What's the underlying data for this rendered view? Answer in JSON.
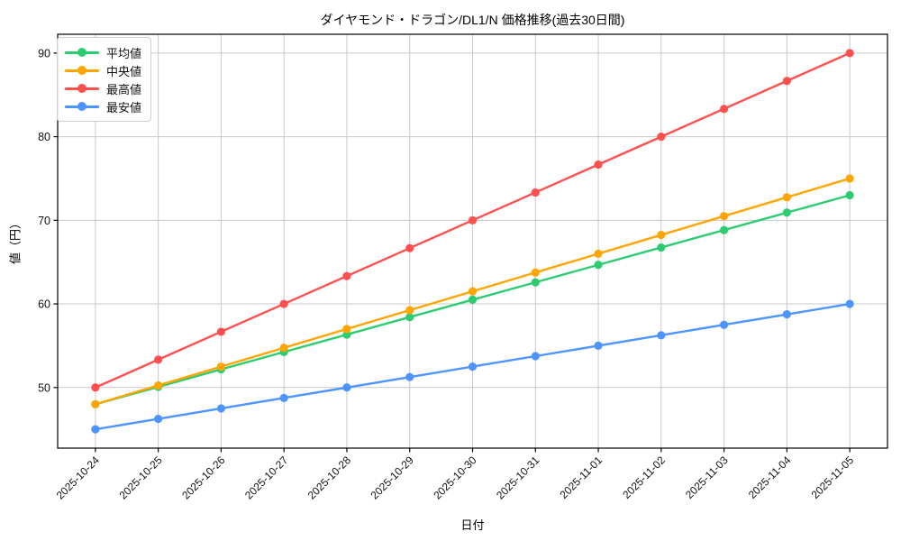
{
  "chart_data": {
    "type": "line",
    "title": "ダイヤモンド・ドラゴン/DL1/N 価格推移(過去30日間)",
    "xlabel": "日付",
    "ylabel": "値（円）",
    "x_categories": [
      "2025-10-24",
      "2025-10-25",
      "2025-10-26",
      "2025-10-27",
      "2025-10-28",
      "2025-10-29",
      "2025-10-30",
      "2025-10-31",
      "2025-11-01",
      "2025-11-02",
      "2025-11-03",
      "2025-11-04",
      "2025-11-05"
    ],
    "series": [
      {
        "key": "average",
        "name": "平均値",
        "color": "#2ecc71",
        "values": [
          48,
          50.08,
          52.17,
          54.25,
          56.33,
          58.42,
          60.5,
          62.58,
          64.67,
          66.75,
          68.83,
          70.92,
          73
        ]
      },
      {
        "key": "median",
        "name": "中央値",
        "color": "#ffa502",
        "values": [
          48,
          50.25,
          52.5,
          54.75,
          57,
          59.25,
          61.5,
          63.75,
          66,
          68.25,
          70.5,
          72.75,
          75
        ]
      },
      {
        "key": "highest",
        "name": "最高値",
        "color": "#ff5050",
        "values": [
          50,
          53.33,
          56.67,
          60,
          63.33,
          66.67,
          70,
          73.33,
          76.67,
          80,
          83.33,
          86.67,
          90
        ]
      },
      {
        "key": "lowest",
        "name": "最安値",
        "color": "#4d94ff",
        "values": [
          45,
          46.25,
          47.5,
          48.75,
          50,
          51.25,
          52.5,
          53.75,
          55,
          56.25,
          57.5,
          58.75,
          60
        ]
      }
    ],
    "yticks": [
      50,
      60,
      70,
      80,
      90
    ],
    "ylim": [
      42.75,
      92.25
    ],
    "grid": true,
    "legend_position": "upper-left",
    "x_tick_rotation_deg": 45
  }
}
